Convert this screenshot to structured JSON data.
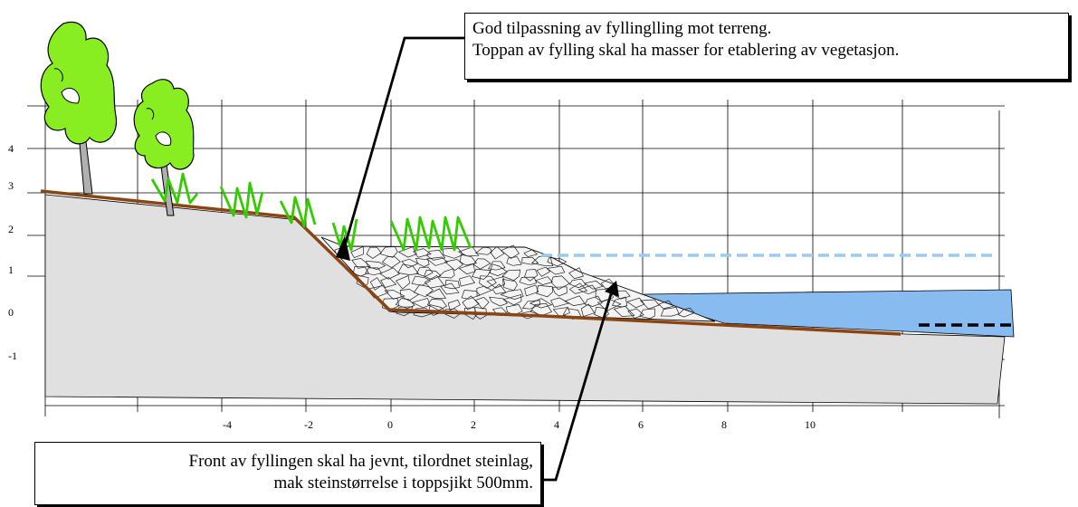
{
  "callouts": {
    "top": [
      "God tilpassning av fyllinglling mot terreng.",
      "Toppan av fylling skal ha masser for etablering av vegetasjon."
    ],
    "bottom": [
      "Front av fyllingen skal ha jevnt, tilordnet  steinlag,",
      "mak steinstørrelse i toppsjikt 500mm."
    ]
  },
  "y_axis_ticks": [
    "4",
    "3",
    "2",
    "1",
    "0",
    "-1"
  ],
  "x_axis_ticks": [
    "-4",
    "-2",
    "0",
    "2",
    "4",
    "6",
    "8",
    "10"
  ],
  "colors": {
    "ground": "#e0e0e0",
    "terrain_line": "#8b4513",
    "vegetation": "#33cc00",
    "tree_crown": "#88ee22",
    "trunk": "#b0b0b0",
    "water": "#88bbf0",
    "water_level_high": "#99ccf0",
    "water_level_low": "#000000",
    "grid": "#000000"
  }
}
